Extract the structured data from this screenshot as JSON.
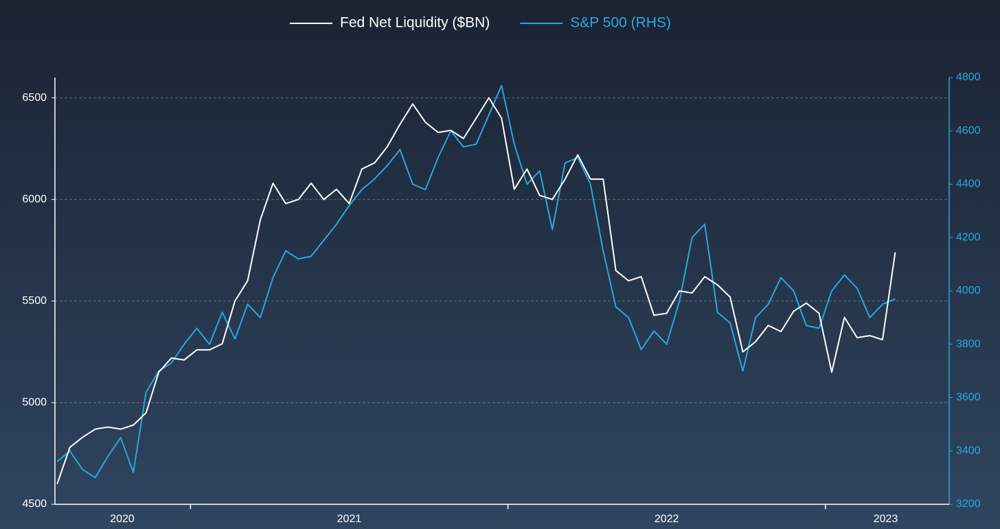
{
  "chart_data": {
    "type": "line",
    "x": [
      2020.58,
      2020.62,
      2020.66,
      2020.7,
      2020.74,
      2020.78,
      2020.82,
      2020.86,
      2020.9,
      2020.94,
      2020.98,
      2021.02,
      2021.06,
      2021.1,
      2021.14,
      2021.18,
      2021.22,
      2021.26,
      2021.3,
      2021.34,
      2021.38,
      2021.42,
      2021.46,
      2021.5,
      2021.54,
      2021.58,
      2021.62,
      2021.66,
      2021.7,
      2021.74,
      2021.78,
      2021.82,
      2021.86,
      2021.9,
      2021.94,
      2021.98,
      2022.02,
      2022.06,
      2022.1,
      2022.14,
      2022.18,
      2022.22,
      2022.26,
      2022.3,
      2022.34,
      2022.38,
      2022.42,
      2022.46,
      2022.5,
      2022.54,
      2022.58,
      2022.62,
      2022.66,
      2022.7,
      2022.74,
      2022.78,
      2022.82,
      2022.86,
      2022.9,
      2022.94,
      2022.98,
      2023.02,
      2023.06,
      2023.1,
      2023.14,
      2023.18,
      2023.22
    ],
    "series": [
      {
        "name": "Fed Net Liquidity ($BN)",
        "color": "#ffffff",
        "axis": "y",
        "values": [
          4600,
          4780,
          4830,
          4870,
          4880,
          4870,
          4890,
          4950,
          5150,
          5220,
          5210,
          5260,
          5260,
          5290,
          5500,
          5600,
          5900,
          6080,
          5980,
          6000,
          6080,
          6000,
          6050,
          5980,
          6150,
          6180,
          6260,
          6370,
          6470,
          6380,
          6330,
          6340,
          6300,
          6400,
          6500,
          6400,
          6050,
          6150,
          6020,
          6000,
          6100,
          6220,
          6100,
          6100,
          5650,
          5600,
          5620,
          5430,
          5440,
          5550,
          5540,
          5620,
          5580,
          5520,
          5250,
          5300,
          5380,
          5350,
          5450,
          5490,
          5440,
          5150,
          5420,
          5320,
          5330,
          5310,
          5740
        ]
      },
      {
        "name": "S&P 500 (RHS)",
        "color": "#29a8e0",
        "axis": "y2",
        "values": [
          3360,
          3400,
          3330,
          3300,
          3380,
          3450,
          3320,
          3620,
          3700,
          3730,
          3800,
          3860,
          3800,
          3920,
          3820,
          3950,
          3900,
          4050,
          4150,
          4120,
          4130,
          4190,
          4250,
          4320,
          4380,
          4420,
          4470,
          4530,
          4400,
          4380,
          4500,
          4600,
          4540,
          4550,
          4660,
          4770,
          4550,
          4400,
          4450,
          4230,
          4480,
          4500,
          4400,
          4150,
          3940,
          3900,
          3780,
          3850,
          3800,
          3960,
          4200,
          4250,
          3920,
          3880,
          3700,
          3900,
          3950,
          4050,
          4000,
          3870,
          3860,
          4000,
          4060,
          4010,
          3900,
          3950,
          3970
        ]
      }
    ],
    "xlim": [
      2020.573,
      2023.39
    ],
    "xticks": [
      2021,
      2022,
      2023
    ],
    "xlabels": [
      {
        "value": 2020.785,
        "label": "2020"
      },
      {
        "value": 2021.5,
        "label": "2021"
      },
      {
        "value": 2022.5,
        "label": "2022"
      },
      {
        "value": 2023.19,
        "label": "2023"
      }
    ],
    "ylim": [
      4500,
      6600
    ],
    "yticks": [
      4500,
      5000,
      5500,
      6000,
      6500
    ],
    "y2lim": [
      3200,
      4800
    ],
    "y2ticks": [
      3200,
      3400,
      3600,
      3800,
      4000,
      4200,
      4400,
      4600,
      4800
    ],
    "grid": true,
    "legend": "top"
  }
}
